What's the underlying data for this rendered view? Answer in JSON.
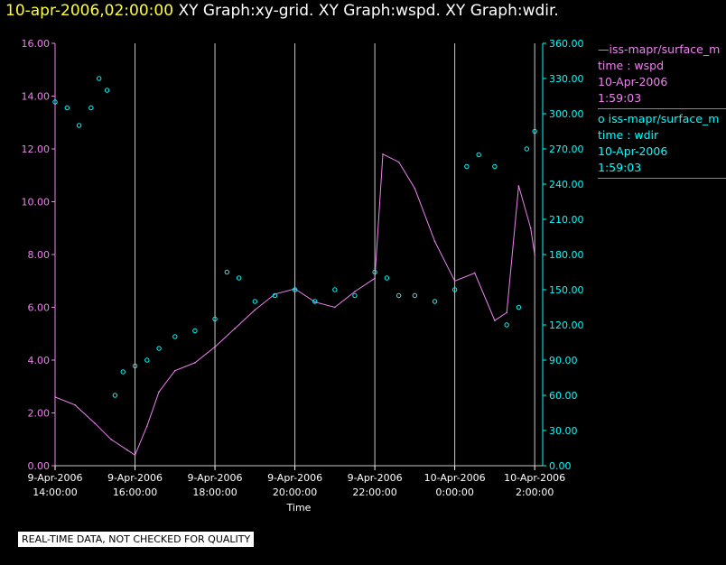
{
  "header": {
    "time": "10-apr-2006,02:00:00",
    "graphs": "XY Graph:xy-grid.  XY Graph:wspd.  XY Graph:wdir."
  },
  "legend": [
    {
      "label": "—iss-mapr/surface_m",
      "var": "time : wspd",
      "date": "10-Apr-2006",
      "clock": "1:59:03"
    },
    {
      "label": "o  iss-mapr/surface_m",
      "var": "time : wdir",
      "date": "10-Apr-2006",
      "clock": "1:59:03"
    }
  ],
  "notice": "REAL-TIME DATA, NOT CHECKED FOR QUALITY",
  "chart_data": {
    "type": "line",
    "xlabel": "Time",
    "x_range_hours": [
      14.0,
      26.2
    ],
    "x_ticks": [
      {
        "hour": 14,
        "date": "9-Apr-2006",
        "time": "14:00:00"
      },
      {
        "hour": 16,
        "date": "9-Apr-2006",
        "time": "16:00:00"
      },
      {
        "hour": 18,
        "date": "9-Apr-2006",
        "time": "18:00:00"
      },
      {
        "hour": 20,
        "date": "9-Apr-2006",
        "time": "20:00:00"
      },
      {
        "hour": 22,
        "date": "9-Apr-2006",
        "time": "22:00:00"
      },
      {
        "hour": 24,
        "date": "10-Apr-2006",
        "time": "0:00:00"
      },
      {
        "hour": 26,
        "date": "10-Apr-2006",
        "time": "2:00:00"
      }
    ],
    "left_axis": {
      "series": "wspd",
      "ylim": [
        0,
        16
      ],
      "ticks": [
        "0.00",
        "2.00",
        "4.00",
        "6.00",
        "8.00",
        "10.00",
        "12.00",
        "14.00",
        "16.00"
      ]
    },
    "right_axis": {
      "series": "wdir",
      "ylim": [
        0,
        360
      ],
      "ticks": [
        "0.00",
        "30.00",
        "60.00",
        "90.00",
        "120.00",
        "150.00",
        "180.00",
        "210.00",
        "240.00",
        "270.00",
        "300.00",
        "330.00",
        "360.00"
      ]
    },
    "series": [
      {
        "name": "wspd",
        "style": "line",
        "color": "#ee82ee",
        "x": [
          14.0,
          14.5,
          15.0,
          15.4,
          15.8,
          16.0,
          16.3,
          16.6,
          17.0,
          17.5,
          18.0,
          18.5,
          19.0,
          19.5,
          20.0,
          20.5,
          21.0,
          21.5,
          22.0,
          22.2,
          22.6,
          23.0,
          23.5,
          24.0,
          24.5,
          25.0,
          25.3,
          25.6,
          25.9,
          26.0
        ],
        "values": [
          2.6,
          2.3,
          1.6,
          1.0,
          0.6,
          0.4,
          1.5,
          2.8,
          3.6,
          3.9,
          4.5,
          5.2,
          5.9,
          6.5,
          6.7,
          6.2,
          6.0,
          6.6,
          7.1,
          11.8,
          11.5,
          10.5,
          8.5,
          7.0,
          7.3,
          5.5,
          5.8,
          10.6,
          9.0,
          8.0
        ]
      },
      {
        "name": "wdir",
        "style": "markers",
        "color": "#00ffff",
        "x": [
          14.0,
          14.3,
          14.6,
          14.9,
          15.1,
          15.3,
          15.5,
          15.7,
          16.0,
          16.3,
          16.6,
          17.0,
          17.5,
          18.0,
          18.3,
          18.6,
          19.0,
          19.5,
          20.0,
          20.5,
          21.0,
          21.5,
          22.0,
          22.3,
          22.6,
          23.0,
          23.5,
          24.0,
          24.3,
          24.6,
          25.0,
          25.3,
          25.6,
          25.8,
          26.0
        ],
        "values": [
          310,
          305,
          290,
          305,
          330,
          320,
          60,
          80,
          85,
          90,
          100,
          110,
          115,
          125,
          165,
          160,
          140,
          145,
          150,
          140,
          150,
          145,
          165,
          160,
          145,
          145,
          140,
          150,
          255,
          265,
          255,
          120,
          135,
          270,
          285
        ]
      }
    ]
  }
}
